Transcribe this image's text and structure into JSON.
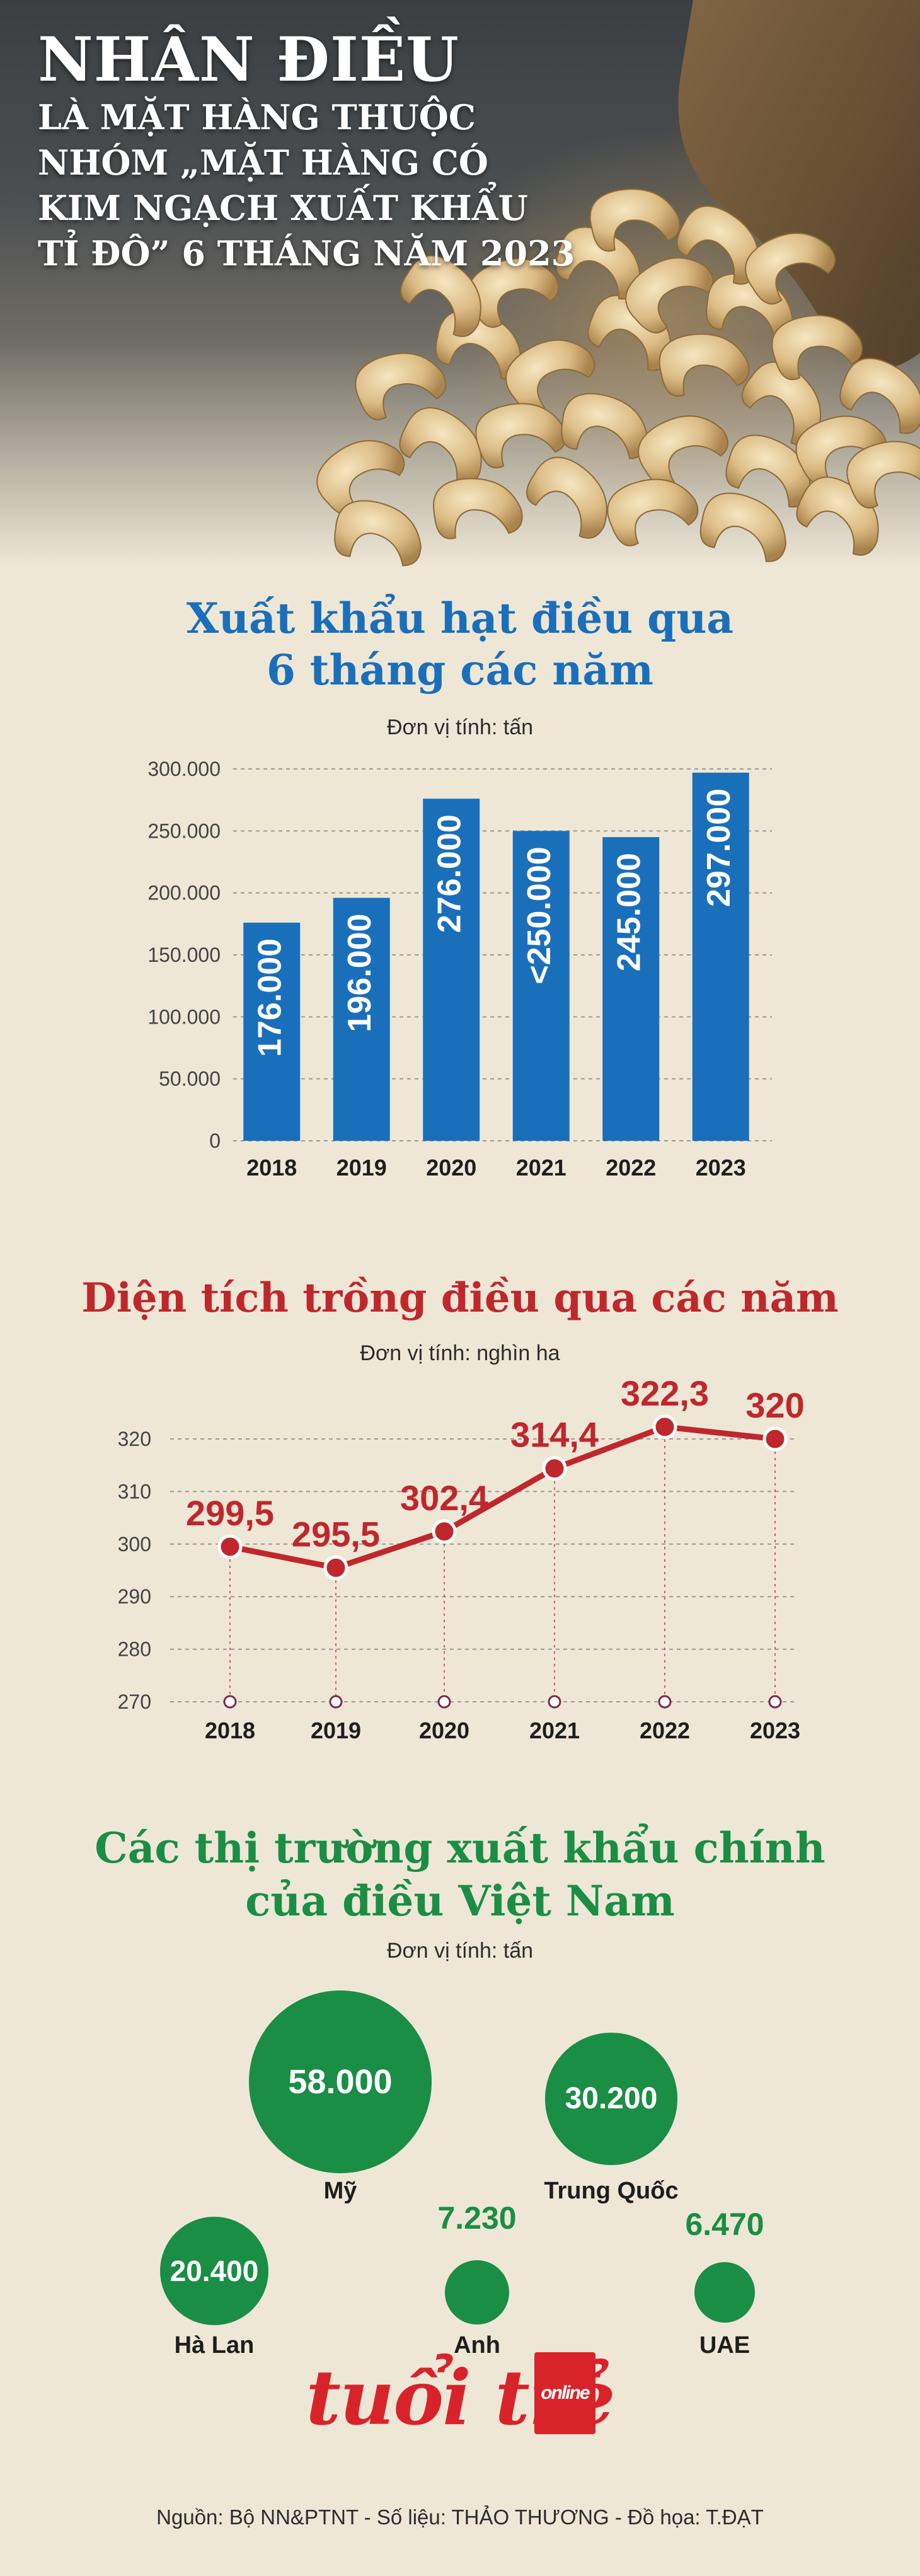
{
  "header": {
    "title": "NHÂN ĐIỀU",
    "subtitle_lines": [
      "LÀ MẶT HÀNG THUỘC",
      "NHÓM „MẶT HÀNG CÓ",
      "KIM NGẠCH XUẤT KHẨU",
      "TỈ ĐÔ” 6 THÁNG NĂM 2023"
    ]
  },
  "colors": {
    "bar": "#1a6fbb",
    "line": "#c0272d",
    "bubble": "#1a8e44"
  },
  "section1": {
    "title_lines": [
      "Xuất khẩu hạt điều qua",
      "6 tháng các năm"
    ],
    "unit": "Đơn vị tính: tấn"
  },
  "section2": {
    "title": "Diện tích trồng điều qua các năm",
    "unit": "Đơn vị tính: nghìn ha"
  },
  "section3": {
    "title_lines": [
      "Các thị trường xuất khẩu chính",
      "của điều Việt Nam"
    ],
    "unit": "Đơn vị tính: tấn"
  },
  "chart_data": [
    {
      "type": "bar",
      "title": "Xuất khẩu hạt điều qua 6 tháng các năm",
      "unit": "Đơn vị tính: tấn",
      "categories": [
        "2018",
        "2019",
        "2020",
        "2021",
        "2022",
        "2023"
      ],
      "values": [
        176000,
        196000,
        276000,
        250000,
        245000,
        297000
      ],
      "value_labels": [
        "176.000",
        "196.000",
        "276.000",
        "<250.000",
        "245.000",
        "297.000"
      ],
      "yticks": [
        "0",
        "50.000",
        "100.000",
        "150.000",
        "200.000",
        "250.000",
        "300.000"
      ],
      "ylim": [
        0,
        300000
      ],
      "grid": true
    },
    {
      "type": "line",
      "title": "Diện tích trồng điều qua các năm",
      "unit": "Đơn vị tính: nghìn ha",
      "categories": [
        "2018",
        "2019",
        "2020",
        "2021",
        "2022",
        "2023"
      ],
      "values": [
        299.5,
        295.5,
        302.4,
        314.4,
        322.3,
        320
      ],
      "value_labels": [
        "299,5",
        "295,5",
        "302,4",
        "314,4",
        "322,3",
        "320"
      ],
      "yticks": [
        "270",
        "280",
        "290",
        "300",
        "310",
        "320"
      ],
      "ylim": [
        270,
        320
      ],
      "grid": true
    },
    {
      "type": "bubble",
      "title": "Các thị trường xuất khẩu chính của điều Việt Nam",
      "unit": "Đơn vị tính: tấn",
      "categories": [
        "Mỹ",
        "Trung Quốc",
        "Hà Lan",
        "Anh",
        "UAE"
      ],
      "values": [
        58000,
        30200,
        20400,
        7230,
        6470
      ],
      "value_labels": [
        "58.000",
        "30.200",
        "20.400",
        "7.230",
        "6.470"
      ]
    }
  ],
  "footer": {
    "logo_main": "tuổi trẻ",
    "logo_sub": "online",
    "source": "Nguồn: Bộ NN&PTNT - Số liệu: THẢO THƯƠNG - Đồ họa: T.ĐẠT"
  }
}
